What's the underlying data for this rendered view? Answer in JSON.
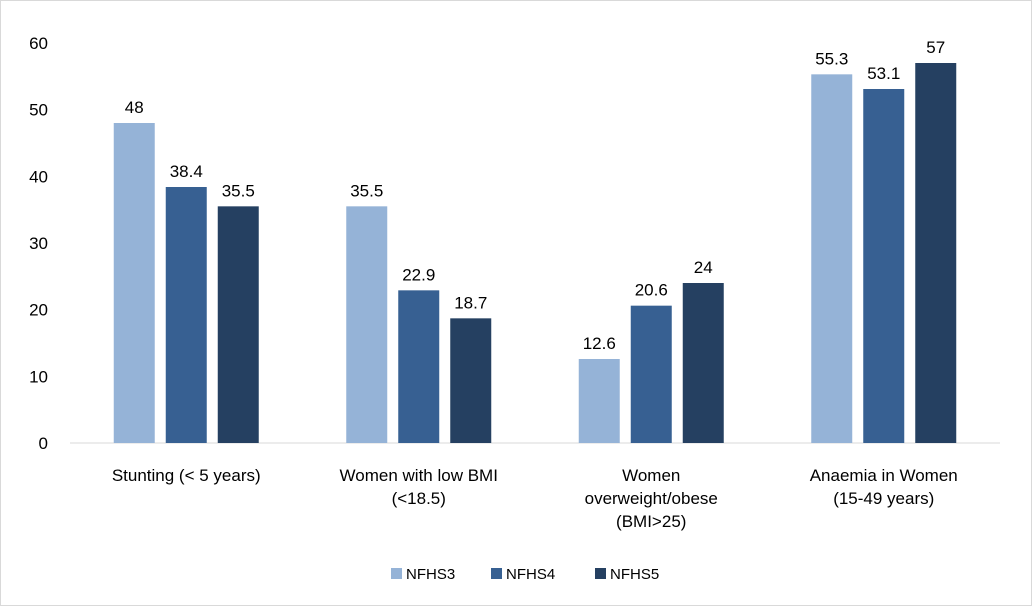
{
  "chart_data": {
    "type": "bar",
    "title": "",
    "xlabel": "",
    "ylabel": "",
    "ylim": [
      0,
      60
    ],
    "yticks": [
      0,
      10,
      20,
      30,
      40,
      50,
      60
    ],
    "grid": false,
    "legend_position": "bottom",
    "categories": [
      [
        "Stunting (< 5 years)"
      ],
      [
        "Women with low BMI",
        "(<18.5)"
      ],
      [
        "Women",
        "overweight/obese",
        "(BMI>25)"
      ],
      [
        "Anaemia in Women",
        "(15-49 years)"
      ]
    ],
    "series": [
      {
        "name": "NFHS3",
        "color": "#95b3d7",
        "values": [
          48,
          35.5,
          12.6,
          55.3
        ]
      },
      {
        "name": "NFHS4",
        "color": "#376092",
        "values": [
          38.4,
          22.9,
          20.6,
          53.1
        ]
      },
      {
        "name": "NFHS5",
        "color": "#254061",
        "values": [
          35.5,
          18.7,
          24,
          57
        ]
      }
    ]
  }
}
